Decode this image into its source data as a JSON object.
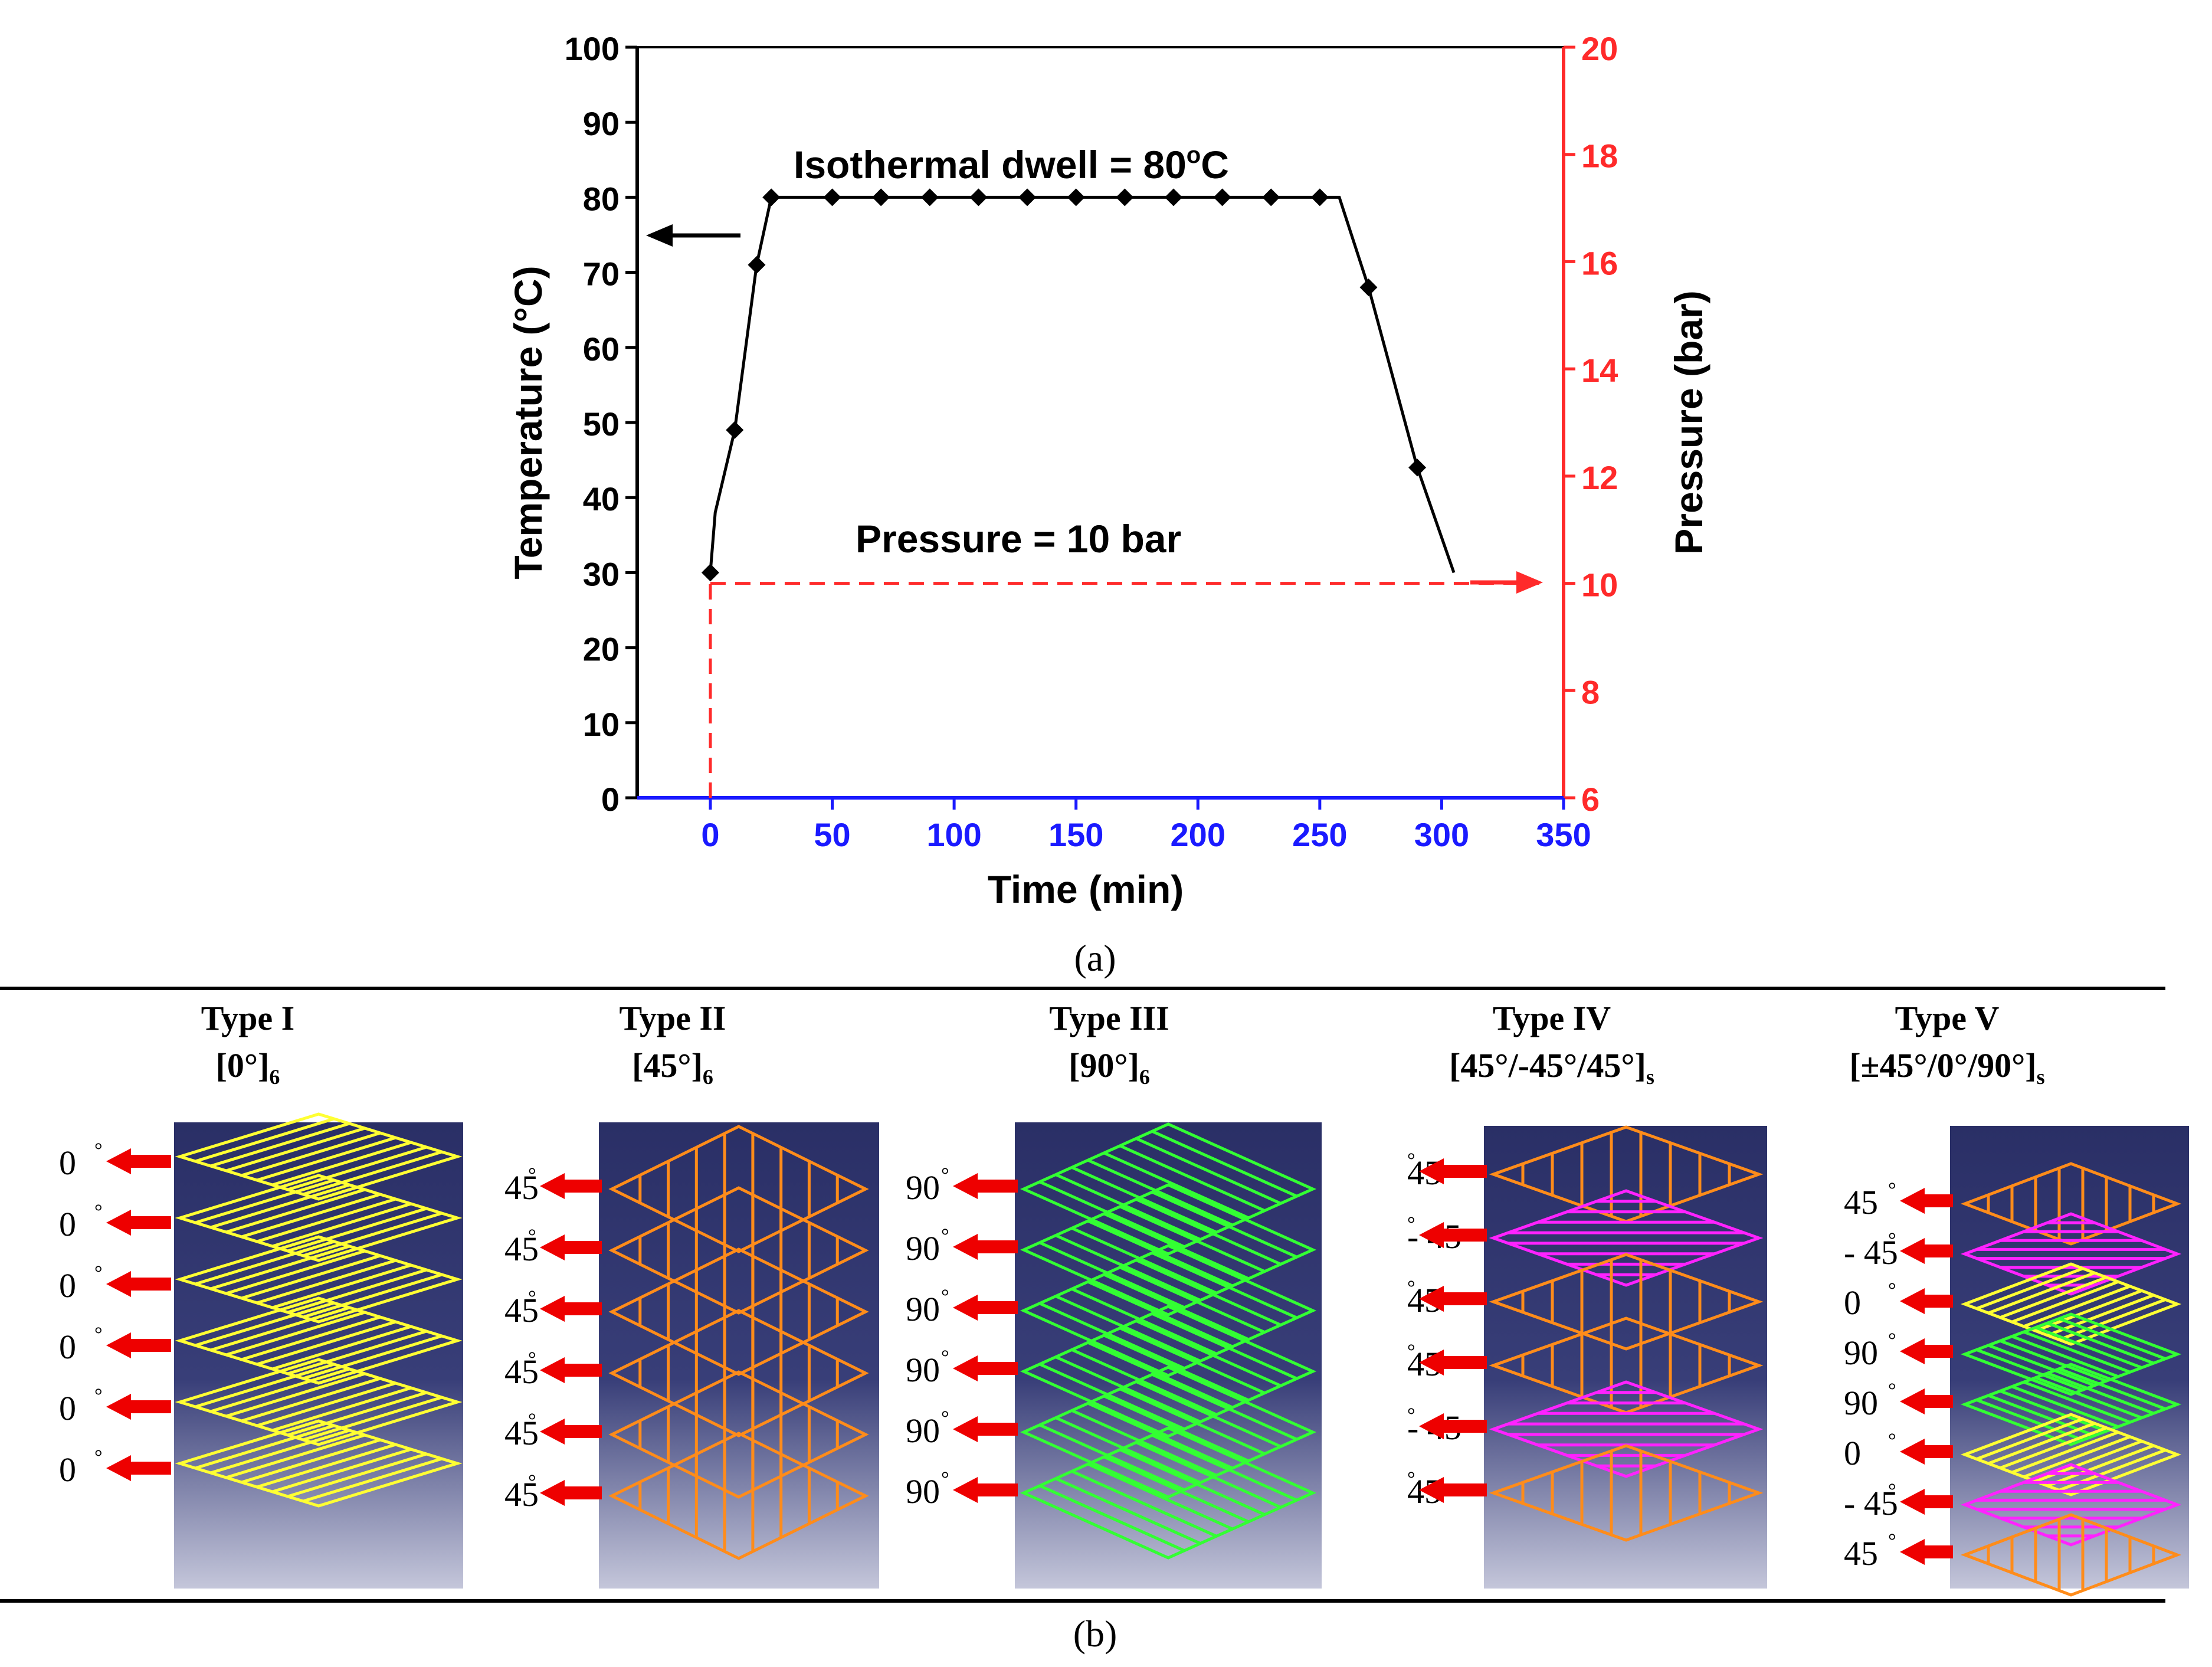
{
  "chart_data": {
    "type": "line",
    "xlabel": "Time (min)",
    "ylabel": "Temperature (°C)",
    "y2label": "Pressure (bar)",
    "xlim": [
      -30,
      350
    ],
    "ylim": [
      0,
      100
    ],
    "y2lim": [
      6,
      20
    ],
    "xticks": [
      "0",
      "50",
      "100",
      "150",
      "200",
      "250",
      "300",
      "350"
    ],
    "yticks": [
      "0",
      "10",
      "20",
      "30",
      "40",
      "50",
      "60",
      "70",
      "80",
      "90",
      "100"
    ],
    "y2ticks": [
      "6",
      "8",
      "10",
      "12",
      "14",
      "16",
      "18",
      "20"
    ],
    "series": [
      {
        "name": "Temperature",
        "markers": [
          {
            "x": 0,
            "y": 30
          },
          {
            "x": 10,
            "y": 49
          },
          {
            "x": 19,
            "y": 71
          },
          {
            "x": 25,
            "y": 80
          },
          {
            "x": 50,
            "y": 80
          },
          {
            "x": 70,
            "y": 80
          },
          {
            "x": 90,
            "y": 80
          },
          {
            "x": 110,
            "y": 80
          },
          {
            "x": 130,
            "y": 80
          },
          {
            "x": 150,
            "y": 80
          },
          {
            "x": 170,
            "y": 80
          },
          {
            "x": 190,
            "y": 80
          },
          {
            "x": 210,
            "y": 80
          },
          {
            "x": 230,
            "y": 80
          },
          {
            "x": 250,
            "y": 80
          },
          {
            "x": 270,
            "y": 68
          },
          {
            "x": 290,
            "y": 44
          }
        ],
        "line": [
          {
            "x": 0,
            "y": 30
          },
          {
            "x": 2,
            "y": 38
          },
          {
            "x": 10,
            "y": 49
          },
          {
            "x": 19,
            "y": 71
          },
          {
            "x": 25,
            "y": 80
          },
          {
            "x": 258,
            "y": 80
          },
          {
            "x": 270,
            "y": 68
          },
          {
            "x": 290,
            "y": 44
          },
          {
            "x": 305,
            "y": 30
          }
        ]
      },
      {
        "name": "Pressure",
        "axis": "right",
        "style": "dashed",
        "color": "#ff2a2a",
        "segments": [
          [
            {
              "x": 0,
              "y": 10
            },
            {
              "x": 340,
              "y": 10
            }
          ],
          [
            {
              "x": 0,
              "y": 6
            },
            {
              "x": 0,
              "y": 10
            }
          ]
        ]
      }
    ],
    "annotations": {
      "dwell": "Isothermal dwell = 80",
      "dwell_sup": "o",
      "dwell_unit": "C",
      "pressure": "Pressure = 10 bar"
    },
    "caption": "(a)",
    "colors": {
      "axis_left": "#000000",
      "axis_right": "#ff2a2a",
      "axis_bottom": "#1a1aff"
    }
  },
  "panel_b": {
    "caption": "(b)",
    "types": [
      {
        "title": "Type I",
        "layup": "[0°]",
        "sub": "6",
        "labels": [
          "0",
          "0",
          "0",
          "0",
          "0",
          "0"
        ],
        "layers": [
          "0",
          "0",
          "0",
          "0",
          "0",
          "0"
        ]
      },
      {
        "title": "Type II",
        "layup": "[45°]",
        "sub": "6",
        "labels": [
          "45",
          "45",
          "45",
          "45",
          "45",
          "45"
        ],
        "layers": [
          "45",
          "45",
          "45",
          "45",
          "45",
          "45"
        ]
      },
      {
        "title": "Type III",
        "layup": "[90°]",
        "sub": "6",
        "labels": [
          "90",
          "90",
          "90",
          "90",
          "90",
          "90"
        ],
        "layers": [
          "90",
          "90",
          "90",
          "90",
          "90",
          "90"
        ]
      },
      {
        "title": "Type IV",
        "layup": "[45°/-45°/45°]",
        "sub": "s",
        "labels": [
          "45",
          "- 45",
          "45",
          "45",
          "- 45",
          "45"
        ],
        "layers": [
          "45",
          "-45",
          "45",
          "45",
          "-45",
          "45"
        ]
      },
      {
        "title": "Type V",
        "layup": "[±45°/0°/90°]",
        "sub": "s",
        "labels": [
          "45",
          "- 45",
          "0",
          "90",
          "90",
          "0",
          "- 45",
          "45"
        ],
        "layers": [
          "45",
          "-45",
          "0",
          "90",
          "90",
          "0",
          "-45",
          "45"
        ]
      }
    ],
    "colors": {
      "0": "#ffff33",
      "45": "#ff8c1a",
      "-45": "#ff22ff",
      "90": "#33ff33",
      "arrow": "#ee0000",
      "panel_top": "#2a2f66",
      "panel_bottom": "#c4c6da"
    }
  }
}
